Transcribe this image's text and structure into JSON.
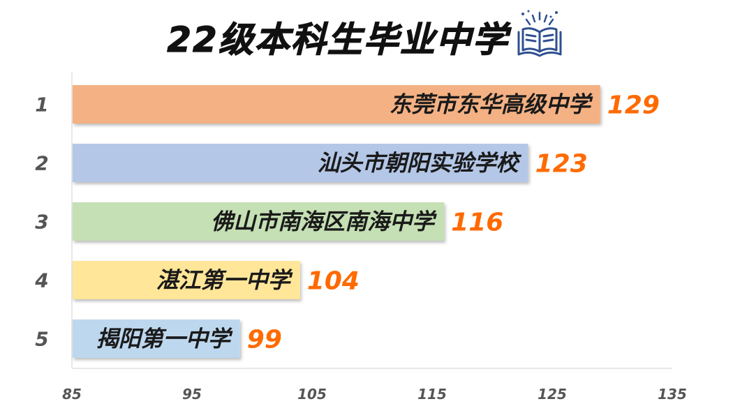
{
  "chart_data": {
    "type": "bar",
    "orientation": "horizontal",
    "title": "22级本科生毕业中学",
    "ranks": [
      "1",
      "2",
      "3",
      "4",
      "5"
    ],
    "categories": [
      "东莞市东华高级中学",
      "汕头市朝阳实验学校",
      "佛山市南海区南海中学",
      "湛江第一中学",
      "揭阳第一中学"
    ],
    "values": [
      129,
      123,
      116,
      104,
      99
    ],
    "value_labels": [
      "129",
      "123",
      "116",
      "104",
      "99"
    ],
    "bar_colors": [
      "#f4b183",
      "#b4c7e7",
      "#c5e0b4",
      "#ffe699",
      "#bdd7ee"
    ],
    "value_color": "#ff6a00",
    "xlim": [
      85,
      135
    ],
    "xticks": [
      "85",
      "95",
      "105",
      "115",
      "125",
      "135"
    ],
    "grid": false,
    "icon": "open-book-icon"
  }
}
